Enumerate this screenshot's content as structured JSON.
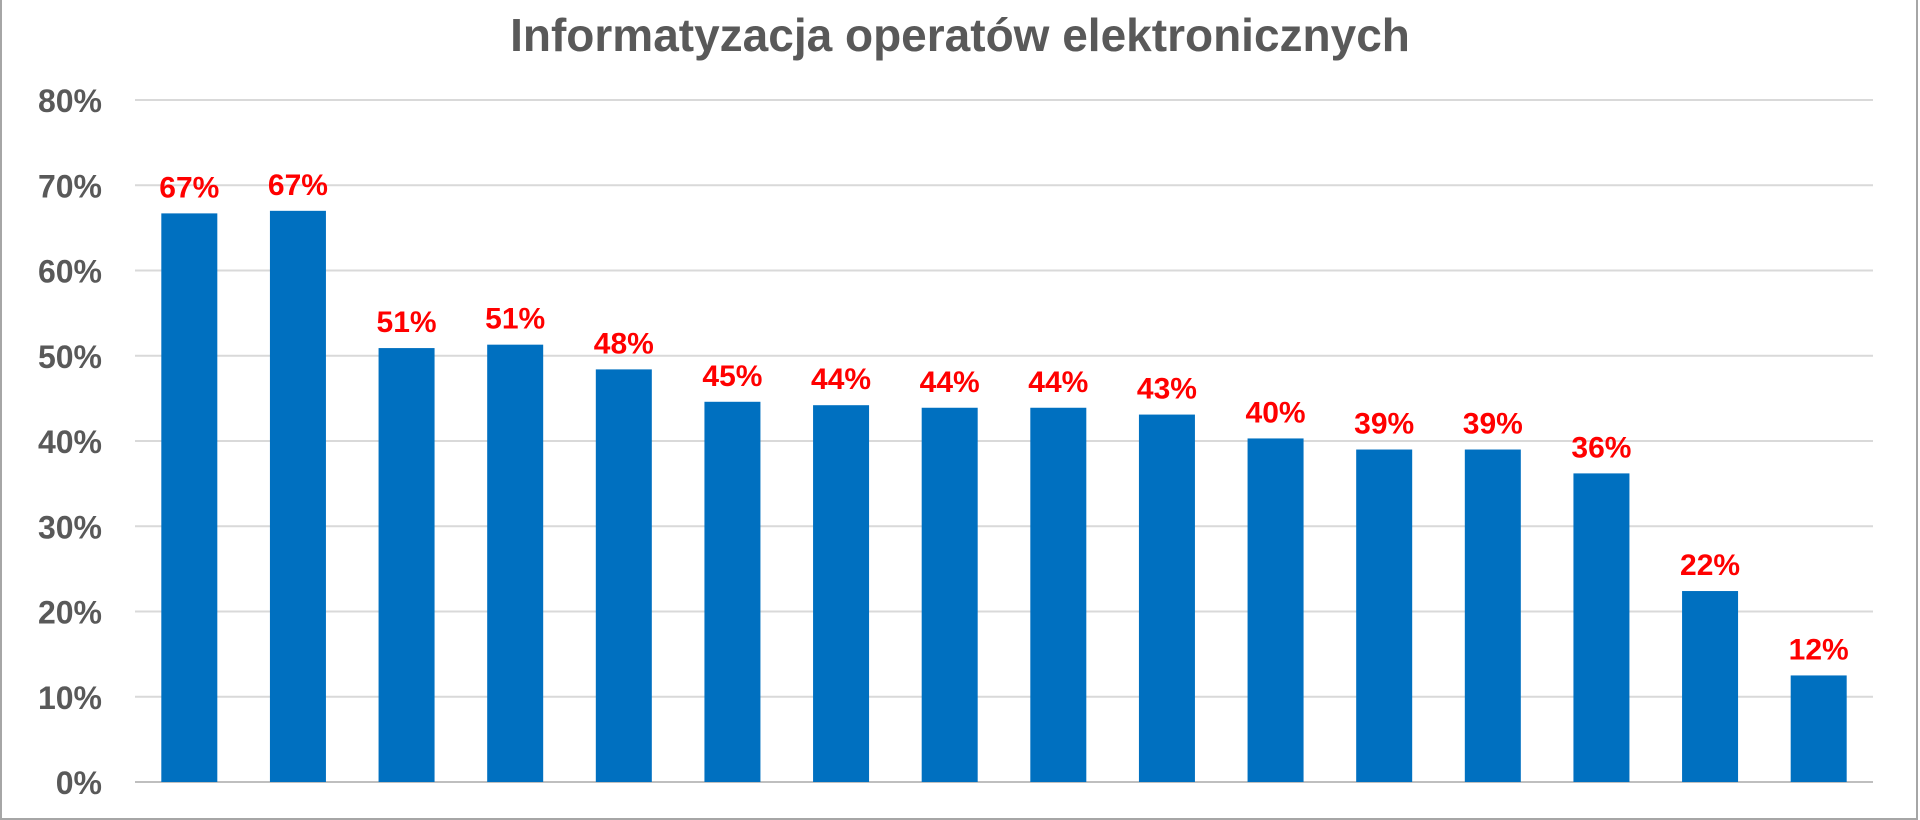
{
  "chart_data": {
    "type": "bar",
    "title": "Informatyzacja operatów elektronicznych",
    "xlabel": "",
    "ylabel": "",
    "ylim": [
      0,
      0.8
    ],
    "yticks": [
      "0%",
      "10%",
      "20%",
      "30%",
      "40%",
      "50%",
      "60%",
      "70%",
      "80%"
    ],
    "grid": true,
    "legend": "none",
    "categories": [],
    "values": [
      0.667,
      0.67,
      0.509,
      0.513,
      0.484,
      0.446,
      0.442,
      0.439,
      0.439,
      0.431,
      0.403,
      0.39,
      0.39,
      0.362,
      0.224,
      0.125
    ],
    "labels": [
      "67%",
      "67%",
      "51%",
      "51%",
      "48%",
      "45%",
      "44%",
      "44%",
      "44%",
      "43%",
      "40%",
      "39%",
      "39%",
      "36%",
      "22%",
      "12%"
    ],
    "bar_color": "#0070c0",
    "label_color": "#ff0000",
    "grid_color": "#d9d9d9",
    "axis_text_color": "#595959"
  }
}
